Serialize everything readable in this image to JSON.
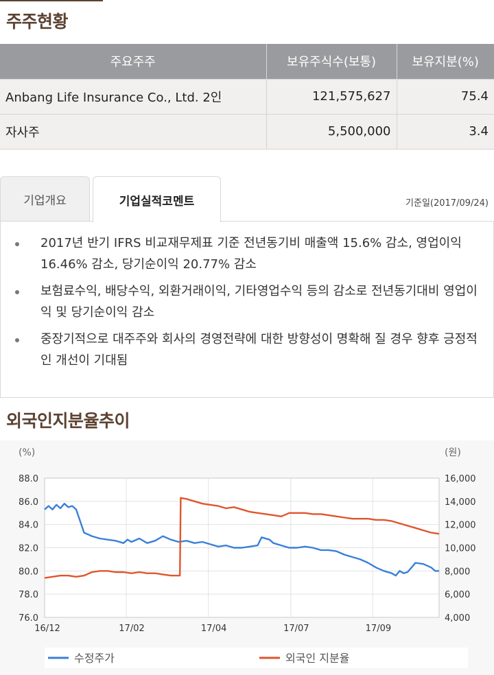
{
  "shareholders": {
    "title": "주주현황",
    "columns": [
      "주요주주",
      "보유주식수(보통)",
      "보유지분(%)"
    ],
    "rows": [
      {
        "name": "Anbang Life Insurance Co., Ltd. 2인",
        "shares": "121,575,627",
        "stake": "75.4"
      },
      {
        "name": "자사주",
        "shares": "5,500,000",
        "stake": "3.4"
      }
    ]
  },
  "tabs": {
    "items": [
      {
        "label": "기업개요",
        "active": false
      },
      {
        "label": "기업실적코멘트",
        "active": true
      }
    ],
    "base_date": "기준일(2017/09/24)"
  },
  "comments": [
    "2017년 반기 IFRS 비교재무제표 기준 전년동기비 매출액 15.6% 감소, 영업이익 16.46% 감소, 당기순이익 20.77% 감소",
    "보험료수익, 배당수익, 외환거래이익, 기타영업수익 등의 감소로 전년동기대비 영업이익 및 당기순이익 감소",
    "중장기적으로 대주주와 회사의 경영전략에 대한 방향성이 명확해 질 경우 향후 긍정적인 개선이 기대됨"
  ],
  "foreign_section": {
    "title": "외국인지분율추이"
  },
  "colors": {
    "price": "#3a7fd8",
    "foreign": "#e0552b",
    "brown": "#5c4232"
  },
  "chart_data": {
    "type": "line",
    "left_unit": "(%)",
    "right_unit": "(원)",
    "left_axis": {
      "min": 76,
      "max": 88,
      "ticks": [
        "76.0",
        "78.0",
        "80.0",
        "82.0",
        "84.0",
        "86.0",
        "88.0"
      ]
    },
    "right_axis": {
      "min": 4000,
      "max": 16000,
      "ticks": [
        "4,000",
        "6,000",
        "8,000",
        "10,000",
        "12,000",
        "14,000",
        "16,000"
      ]
    },
    "x_ticks": [
      "16/12",
      "17/02",
      "17/04",
      "17/07",
      "17/09"
    ],
    "x_tick_positions": [
      0,
      0.207,
      0.415,
      0.624,
      0.832
    ],
    "grid": true,
    "legend_position": "bottom",
    "series": [
      {
        "name": "수정주가",
        "axis": "right",
        "color": "#3a7fd8",
        "points": [
          [
            0,
            13300
          ],
          [
            0.01,
            13600
          ],
          [
            0.02,
            13300
          ],
          [
            0.03,
            13700
          ],
          [
            0.04,
            13400
          ],
          [
            0.05,
            13800
          ],
          [
            0.06,
            13500
          ],
          [
            0.07,
            13600
          ],
          [
            0.08,
            13300
          ],
          [
            0.09,
            12300
          ],
          [
            0.1,
            11300
          ],
          [
            0.12,
            11000
          ],
          [
            0.14,
            10800
          ],
          [
            0.16,
            10700
          ],
          [
            0.18,
            10600
          ],
          [
            0.2,
            10400
          ],
          [
            0.21,
            10700
          ],
          [
            0.22,
            10500
          ],
          [
            0.24,
            10800
          ],
          [
            0.26,
            10400
          ],
          [
            0.28,
            10600
          ],
          [
            0.3,
            11000
          ],
          [
            0.32,
            10700
          ],
          [
            0.34,
            10500
          ],
          [
            0.36,
            10600
          ],
          [
            0.38,
            10400
          ],
          [
            0.4,
            10500
          ],
          [
            0.42,
            10300
          ],
          [
            0.44,
            10100
          ],
          [
            0.46,
            10200
          ],
          [
            0.48,
            10000
          ],
          [
            0.5,
            10000
          ],
          [
            0.52,
            10100
          ],
          [
            0.54,
            10200
          ],
          [
            0.55,
            10900
          ],
          [
            0.57,
            10700
          ],
          [
            0.58,
            10400
          ],
          [
            0.6,
            10200
          ],
          [
            0.62,
            10000
          ],
          [
            0.64,
            10000
          ],
          [
            0.66,
            10100
          ],
          [
            0.68,
            10000
          ],
          [
            0.7,
            9800
          ],
          [
            0.72,
            9800
          ],
          [
            0.74,
            9700
          ],
          [
            0.76,
            9400
          ],
          [
            0.78,
            9200
          ],
          [
            0.8,
            9000
          ],
          [
            0.82,
            8700
          ],
          [
            0.84,
            8300
          ],
          [
            0.86,
            8000
          ],
          [
            0.88,
            7800
          ],
          [
            0.89,
            7600
          ],
          [
            0.9,
            8000
          ],
          [
            0.91,
            7800
          ],
          [
            0.92,
            7900
          ],
          [
            0.93,
            8300
          ],
          [
            0.94,
            8700
          ],
          [
            0.96,
            8600
          ],
          [
            0.98,
            8300
          ],
          [
            0.99,
            8000
          ],
          [
            1,
            8000
          ]
        ]
      },
      {
        "name": "외국인 지분율",
        "axis": "left",
        "color": "#e0552b",
        "points": [
          [
            0,
            79.4
          ],
          [
            0.02,
            79.5
          ],
          [
            0.04,
            79.6
          ],
          [
            0.06,
            79.6
          ],
          [
            0.08,
            79.5
          ],
          [
            0.1,
            79.6
          ],
          [
            0.12,
            79.9
          ],
          [
            0.14,
            80.0
          ],
          [
            0.16,
            80.0
          ],
          [
            0.18,
            79.9
          ],
          [
            0.2,
            79.9
          ],
          [
            0.22,
            79.8
          ],
          [
            0.24,
            79.9
          ],
          [
            0.26,
            79.8
          ],
          [
            0.28,
            79.8
          ],
          [
            0.3,
            79.7
          ],
          [
            0.32,
            79.6
          ],
          [
            0.343,
            79.6
          ],
          [
            0.345,
            86.3
          ],
          [
            0.36,
            86.2
          ],
          [
            0.38,
            86.0
          ],
          [
            0.4,
            85.8
          ],
          [
            0.42,
            85.7
          ],
          [
            0.44,
            85.6
          ],
          [
            0.46,
            85.4
          ],
          [
            0.48,
            85.5
          ],
          [
            0.5,
            85.3
          ],
          [
            0.52,
            85.1
          ],
          [
            0.54,
            85.0
          ],
          [
            0.56,
            84.9
          ],
          [
            0.58,
            84.8
          ],
          [
            0.6,
            84.7
          ],
          [
            0.62,
            85.0
          ],
          [
            0.64,
            85.0
          ],
          [
            0.66,
            85.0
          ],
          [
            0.68,
            84.9
          ],
          [
            0.7,
            84.9
          ],
          [
            0.72,
            84.8
          ],
          [
            0.74,
            84.7
          ],
          [
            0.76,
            84.6
          ],
          [
            0.78,
            84.5
          ],
          [
            0.8,
            84.5
          ],
          [
            0.82,
            84.5
          ],
          [
            0.84,
            84.4
          ],
          [
            0.86,
            84.4
          ],
          [
            0.88,
            84.3
          ],
          [
            0.9,
            84.1
          ],
          [
            0.92,
            83.9
          ],
          [
            0.94,
            83.7
          ],
          [
            0.96,
            83.5
          ],
          [
            0.98,
            83.3
          ],
          [
            1,
            83.2
          ]
        ]
      }
    ]
  }
}
